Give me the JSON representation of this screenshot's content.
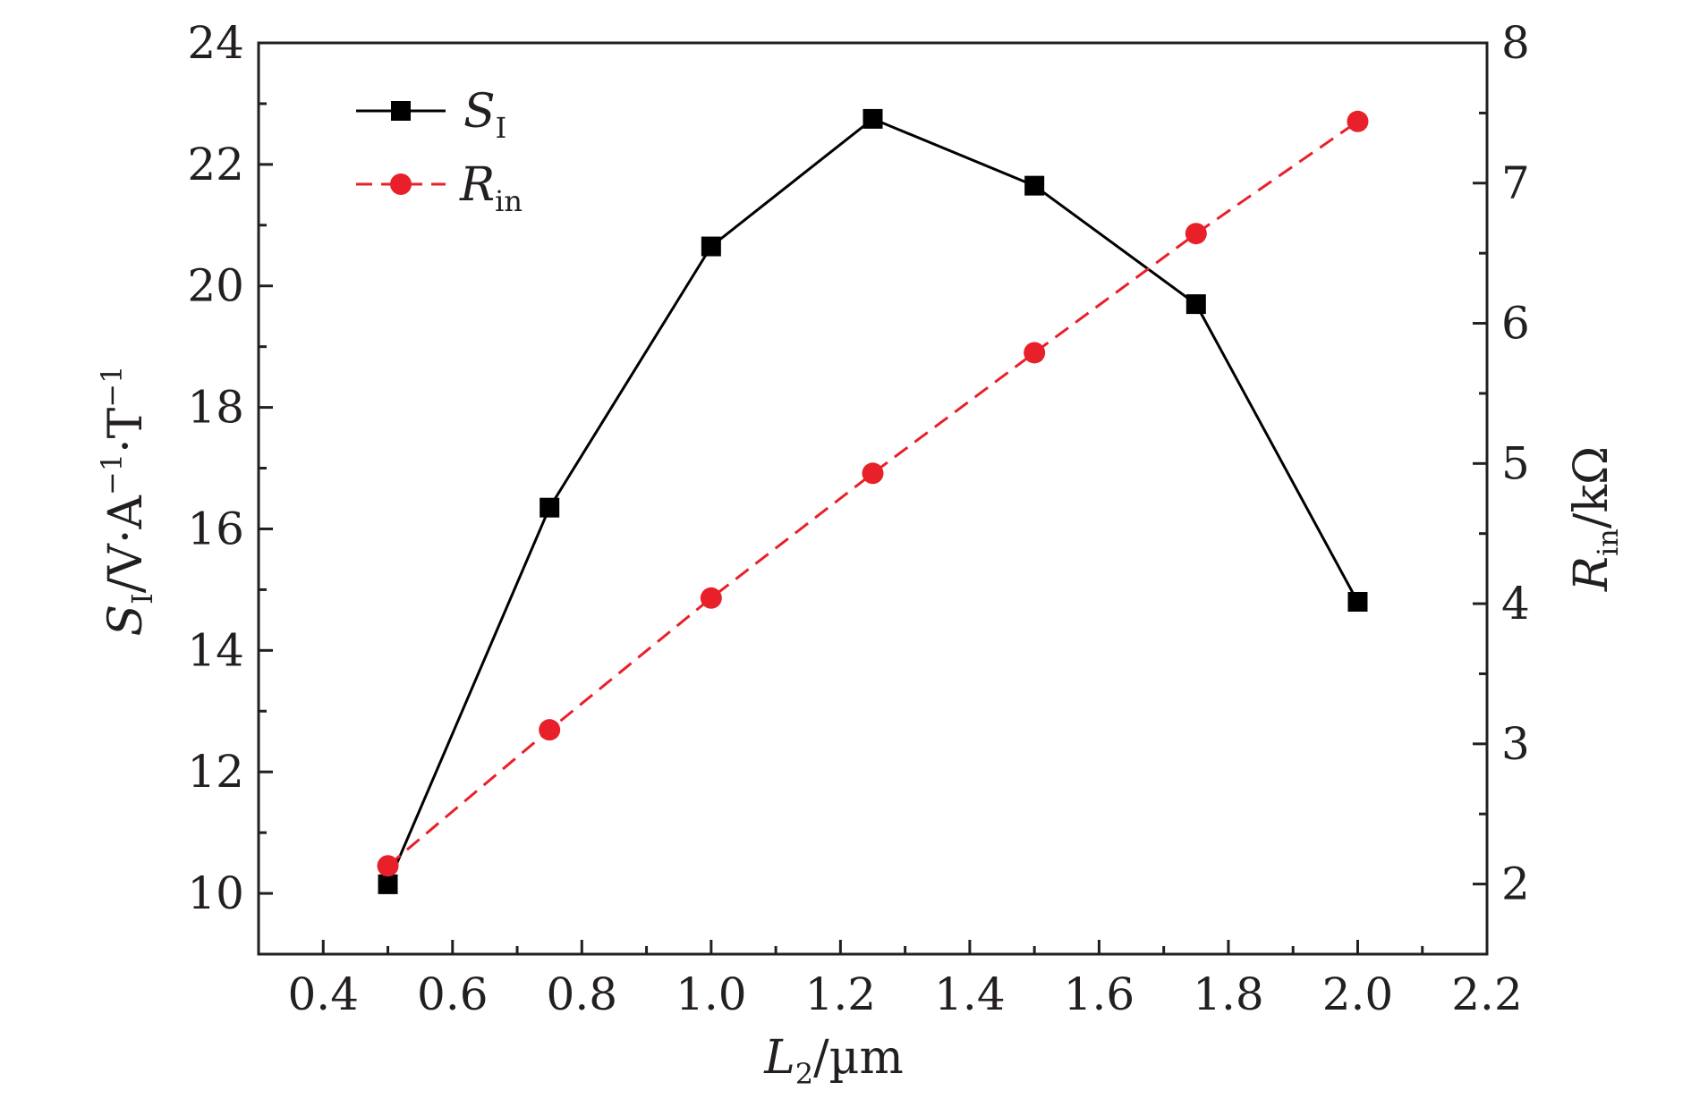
{
  "chart_data": {
    "type": "line",
    "x": [
      0.5,
      0.75,
      1.0,
      1.25,
      1.5,
      1.75,
      2.0
    ],
    "xlim": [
      0.3,
      2.2
    ],
    "xticks": [
      "0.4",
      "0.6",
      "0.8",
      "1.0",
      "1.2",
      "1.4",
      "1.6",
      "1.8",
      "2.0",
      "2.2"
    ],
    "xlabel": {
      "var": "L",
      "sub": "2",
      "unit": "/µm"
    },
    "left_axis": {
      "ylim": [
        9,
        24
      ],
      "ticks": [
        "10",
        "12",
        "14",
        "16",
        "18",
        "20",
        "22",
        "24"
      ],
      "label": {
        "var": "S",
        "sub": "I",
        "unit": "/V·A",
        "exp1": "−1",
        "mid": "·T",
        "exp2": "−1"
      }
    },
    "right_axis": {
      "ylim": [
        1.5,
        8
      ],
      "ticks": [
        "2",
        "3",
        "4",
        "5",
        "6",
        "7",
        "8"
      ],
      "label": {
        "var": "R",
        "sub": "in",
        "unit": "/kΩ"
      }
    },
    "series": [
      {
        "name": "S_I",
        "legend_var": "S",
        "legend_sub": "I",
        "axis": "left",
        "color": "#000000",
        "marker": "square",
        "linestyle": "solid",
        "values": [
          10.15,
          16.35,
          20.65,
          22.75,
          21.65,
          19.7,
          14.8
        ]
      },
      {
        "name": "R_in",
        "legend_var": "R",
        "legend_sub": "in",
        "axis": "right",
        "color": "#e8202a",
        "marker": "circle",
        "linestyle": "dashed",
        "values": [
          2.13,
          3.1,
          4.04,
          4.93,
          5.79,
          6.64,
          7.44
        ]
      }
    ],
    "legend_position": "top-left"
  }
}
